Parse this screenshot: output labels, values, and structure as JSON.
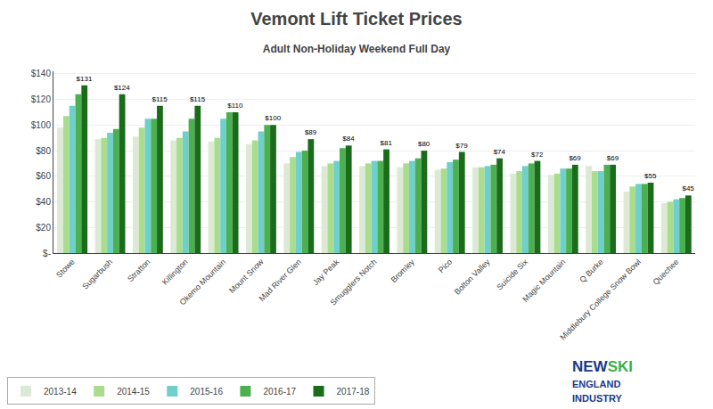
{
  "chart_data": {
    "type": "bar",
    "title": "Vemont Lift Ticket Prices",
    "subtitle": "Adult Non-Holiday Weekend Full Day",
    "categories": [
      "Stowe",
      "Sugarbush",
      "Stratton",
      "Killington",
      "Okemo Mountain",
      "Mount Snow",
      "Mad River Glen",
      "Jay Peak",
      "Smugglers Notch",
      "Bromley",
      "Pico",
      "Bolton Valley",
      "Suicide Six",
      "Magic Mountain",
      "Q Burke",
      "Middlebury College Snow Bowl",
      "Quechee"
    ],
    "series": [
      {
        "name": "2013-14",
        "color": "#dce9d5",
        "values": [
          98,
          89,
          91,
          88,
          87,
          85,
          70,
          68,
          68,
          67,
          65,
          67,
          62,
          61,
          68,
          48,
          39
        ]
      },
      {
        "name": "2014-15",
        "color": "#aadc8e",
        "values": [
          107,
          90,
          98,
          90,
          90,
          88,
          75,
          70,
          70,
          70,
          66,
          67,
          64,
          62,
          64,
          52,
          40
        ]
      },
      {
        "name": "2015-16",
        "color": "#6fcfcb",
        "values": [
          115,
          94,
          105,
          95,
          105,
          95,
          79,
          72,
          72,
          72,
          71,
          68,
          68,
          66,
          64,
          54,
          42
        ]
      },
      {
        "name": "2016-17",
        "color": "#4caf50",
        "values": [
          124,
          97,
          105,
          105,
          110,
          100,
          80,
          82,
          72,
          74,
          73,
          69,
          70,
          66,
          69,
          54,
          43
        ]
      },
      {
        "name": "2017-18",
        "color": "#1a6b1a",
        "values": [
          131,
          124,
          115,
          115,
          110,
          100,
          89,
          84,
          81,
          80,
          79,
          74,
          72,
          69,
          69,
          55,
          45
        ],
        "data_labels": true,
        "value_labels": [
          "$131",
          "$124",
          "$115",
          "$115",
          "$110",
          "$100",
          "$89",
          "$84",
          "$81",
          "$80",
          "$79",
          "$74",
          "$72",
          "$69",
          "$69",
          "$55",
          "$45"
        ]
      }
    ],
    "ylim": [
      0,
      142
    ],
    "yticks": [
      {
        "value": 0,
        "label": "$-"
      },
      {
        "value": 20,
        "label": "$20"
      },
      {
        "value": 40,
        "label": "$40"
      },
      {
        "value": 60,
        "label": "$60"
      },
      {
        "value": 80,
        "label": "$80"
      },
      {
        "value": 100,
        "label": "$100"
      },
      {
        "value": 120,
        "label": "$120"
      },
      {
        "value": 140,
        "label": "$140"
      }
    ],
    "grid": true,
    "legend": "bottom",
    "annotations": [
      {
        "text": "NEW",
        "color": "#1a3a8c"
      },
      {
        "text": "SKI",
        "color": "#3cb043"
      },
      {
        "text": "ENGLAND",
        "color": "#1a3a8c"
      },
      {
        "text": "INDUSTRY",
        "color": "#1a3a8c"
      }
    ]
  }
}
